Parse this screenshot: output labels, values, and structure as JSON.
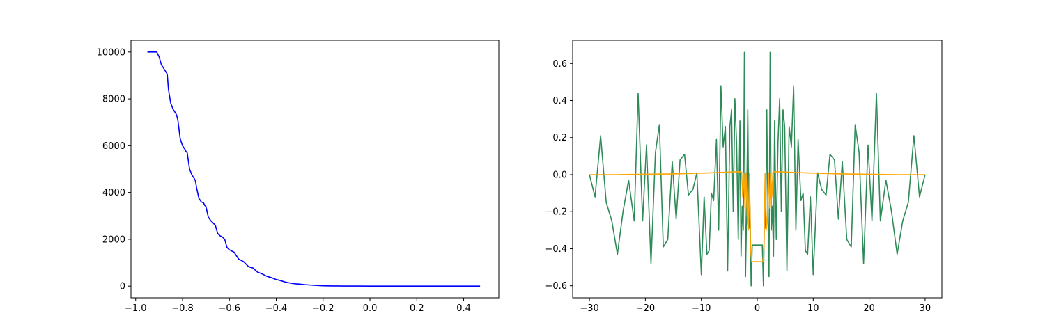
{
  "chart_data": [
    {
      "type": "line",
      "title": "",
      "xlabel": "",
      "ylabel": "",
      "xlim": [
        -1.02,
        0.55
      ],
      "ylim": [
        -500,
        10500
      ],
      "grid": false,
      "xticks": [
        -1.0,
        -0.8,
        -0.6,
        -0.4,
        -0.2,
        0.0,
        0.2,
        0.4
      ],
      "xtick_labels": [
        "−1.0",
        "−0.8",
        "−0.6",
        "−0.4",
        "−0.2",
        "0.0",
        "0.2",
        "0.4"
      ],
      "yticks": [
        0,
        2000,
        4000,
        6000,
        8000,
        10000
      ],
      "ytick_labels": [
        "0",
        "2000",
        "4000",
        "6000",
        "8000",
        "10000"
      ],
      "series": [
        {
          "color": "#0000ff",
          "x": [
            -0.95,
            -0.91,
            -0.9,
            -0.89,
            -0.88,
            -0.865,
            -0.86,
            -0.85,
            -0.84,
            -0.83,
            -0.825,
            -0.82,
            -0.81,
            -0.8,
            -0.79,
            -0.785,
            -0.78,
            -0.77,
            -0.76,
            -0.75,
            -0.745,
            -0.74,
            -0.73,
            -0.72,
            -0.71,
            -0.705,
            -0.7,
            -0.69,
            -0.68,
            -0.67,
            -0.665,
            -0.66,
            -0.65,
            -0.64,
            -0.63,
            -0.625,
            -0.62,
            -0.61,
            -0.6,
            -0.59,
            -0.58,
            -0.56,
            -0.55,
            -0.54,
            -0.52,
            -0.51,
            -0.5,
            -0.48,
            -0.47,
            -0.46,
            -0.44,
            -0.43,
            -0.42,
            -0.4,
            -0.39,
            -0.38,
            -0.36,
            -0.35,
            -0.34,
            -0.32,
            -0.3,
            -0.28,
            -0.26,
            -0.24,
            -0.22,
            -0.2,
            -0.18,
            -0.16,
            -0.14,
            -0.12,
            -0.1,
            -0.05,
            0.0,
            0.05,
            0.1,
            0.2,
            0.3,
            0.4,
            0.47
          ],
          "y": [
            10000,
            10000,
            9800,
            9450,
            9300,
            9050,
            8400,
            7800,
            7550,
            7400,
            7300,
            7100,
            6300,
            6000,
            5850,
            5750,
            5700,
            5000,
            4750,
            4600,
            4500,
            4200,
            3750,
            3600,
            3550,
            3450,
            3400,
            2950,
            2800,
            2700,
            2650,
            2600,
            2250,
            2150,
            2100,
            2050,
            2000,
            1650,
            1550,
            1500,
            1450,
            1150,
            1100,
            1050,
            850,
            800,
            780,
            600,
            560,
            520,
            420,
            390,
            360,
            280,
            260,
            230,
            170,
            150,
            130,
            100,
            85,
            65,
            50,
            35,
            25,
            15,
            10,
            8,
            6,
            4,
            3,
            2,
            1,
            0,
            0,
            0,
            0,
            0,
            0
          ]
        }
      ]
    },
    {
      "type": "line",
      "title": "",
      "xlabel": "",
      "ylabel": "",
      "xlim": [
        -33.0,
        33.0
      ],
      "ylim": [
        -0.665,
        0.725
      ],
      "grid": false,
      "xticks": [
        -30,
        -20,
        -10,
        0,
        10,
        20,
        30
      ],
      "xtick_labels": [
        "−30",
        "−20",
        "−10",
        "0",
        "10",
        "20",
        "30"
      ],
      "yticks": [
        -0.6,
        -0.4,
        -0.2,
        0.0,
        0.2,
        0.4,
        0.6
      ],
      "ytick_labels": [
        "−0.6",
        "−0.4",
        "−0.2",
        "0.0",
        "0.2",
        "0.4",
        "0.6"
      ],
      "series": [
        {
          "color": "#2e8b57",
          "x": [
            -30,
            -29,
            -28,
            -27,
            -26,
            -25,
            -24,
            -23,
            -22,
            -21.3,
            -20.5,
            -19.8,
            -19,
            -18.2,
            -17.5,
            -16.8,
            -16,
            -15.2,
            -14.5,
            -13.8,
            -13,
            -12.3,
            -11.5,
            -10.8,
            -10,
            -9.5,
            -9,
            -8.6,
            -8.2,
            -7.8,
            -7.3,
            -6.9,
            -6.5,
            -6.1,
            -5.7,
            -5.3,
            -4.9,
            -4.6,
            -4.3,
            -4.0,
            -3.7,
            -3.4,
            -3.1,
            -2.9,
            -2.7,
            -2.5,
            -2.3,
            -2.1,
            -1.9,
            -1.7,
            -1.5,
            -1.3,
            -1.1,
            -0.9,
            -0.5,
            0,
            0.5,
            0.9,
            1.1,
            1.3,
            1.5,
            1.7,
            1.9,
            2.1,
            2.3,
            2.5,
            2.7,
            2.9,
            3.1,
            3.4,
            3.7,
            4.0,
            4.3,
            4.6,
            4.9,
            5.3,
            5.7,
            6.1,
            6.5,
            6.9,
            7.3,
            7.8,
            8.2,
            8.6,
            9,
            9.5,
            10,
            10.8,
            11.5,
            12.3,
            13,
            13.8,
            14.5,
            15.2,
            16,
            16.8,
            17.5,
            18.2,
            19,
            19.8,
            20.5,
            21.3,
            22,
            23,
            24,
            25,
            26,
            27,
            28,
            29,
            30
          ],
          "y": [
            0.0,
            -0.12,
            0.21,
            -0.15,
            -0.25,
            -0.43,
            -0.2,
            -0.03,
            -0.25,
            0.44,
            -0.25,
            0.16,
            -0.48,
            0.12,
            0.27,
            -0.39,
            -0.35,
            0.07,
            -0.24,
            0.08,
            0.11,
            -0.11,
            -0.08,
            0.01,
            -0.54,
            -0.12,
            -0.43,
            -0.41,
            -0.1,
            -0.14,
            0.19,
            -0.3,
            0.48,
            0.15,
            0.26,
            -0.52,
            0.26,
            0.35,
            -0.2,
            0.41,
            0.17,
            -0.35,
            0.29,
            -0.44,
            -0.17,
            -0.3,
            0.66,
            -0.55,
            -0.21,
            0.35,
            -0.29,
            -0.17,
            -0.6,
            -0.38,
            -0.38,
            -0.38,
            -0.38,
            -0.38,
            -0.6,
            -0.17,
            -0.29,
            0.35,
            -0.21,
            -0.55,
            0.66,
            -0.3,
            -0.17,
            -0.44,
            0.29,
            -0.35,
            0.17,
            0.41,
            -0.2,
            0.35,
            0.26,
            -0.52,
            0.26,
            0.15,
            0.48,
            -0.3,
            0.19,
            -0.14,
            -0.1,
            -0.41,
            -0.43,
            -0.12,
            -0.54,
            0.01,
            -0.08,
            -0.11,
            0.11,
            0.08,
            -0.24,
            0.07,
            -0.35,
            -0.39,
            0.27,
            0.12,
            -0.48,
            0.16,
            -0.25,
            0.44,
            -0.25,
            -0.03,
            -0.2,
            -0.43,
            -0.25,
            -0.15,
            0.21,
            -0.12,
            0.0
          ]
        },
        {
          "color": "#ffa500",
          "x": [
            -30,
            -25,
            -20,
            -15,
            -10,
            -7,
            -5,
            -4,
            -3.3,
            -2.8,
            -2.6,
            -2.4,
            -2.2,
            -2.0,
            -1.8,
            -1.6,
            -1.4,
            -1.2,
            -1.0,
            -0.5,
            0,
            0.5,
            1.0,
            1.2,
            1.4,
            1.6,
            1.8,
            2.0,
            2.2,
            2.4,
            2.6,
            2.8,
            3.3,
            4,
            5,
            7,
            10,
            15,
            20,
            25,
            30
          ],
          "y": [
            0.0,
            0.0,
            0.002,
            0.004,
            0.008,
            0.011,
            0.014,
            0.015,
            0.016,
            0.014,
            -0.12,
            0.01,
            -0.18,
            0.01,
            -0.22,
            -0.3,
            0.005,
            -0.4,
            -0.47,
            -0.47,
            -0.47,
            -0.47,
            -0.47,
            -0.4,
            0.005,
            -0.3,
            -0.22,
            0.01,
            -0.18,
            0.01,
            -0.12,
            0.014,
            0.016,
            0.015,
            0.014,
            0.011,
            0.008,
            0.004,
            0.002,
            0.0,
            0.0
          ]
        }
      ]
    }
  ]
}
